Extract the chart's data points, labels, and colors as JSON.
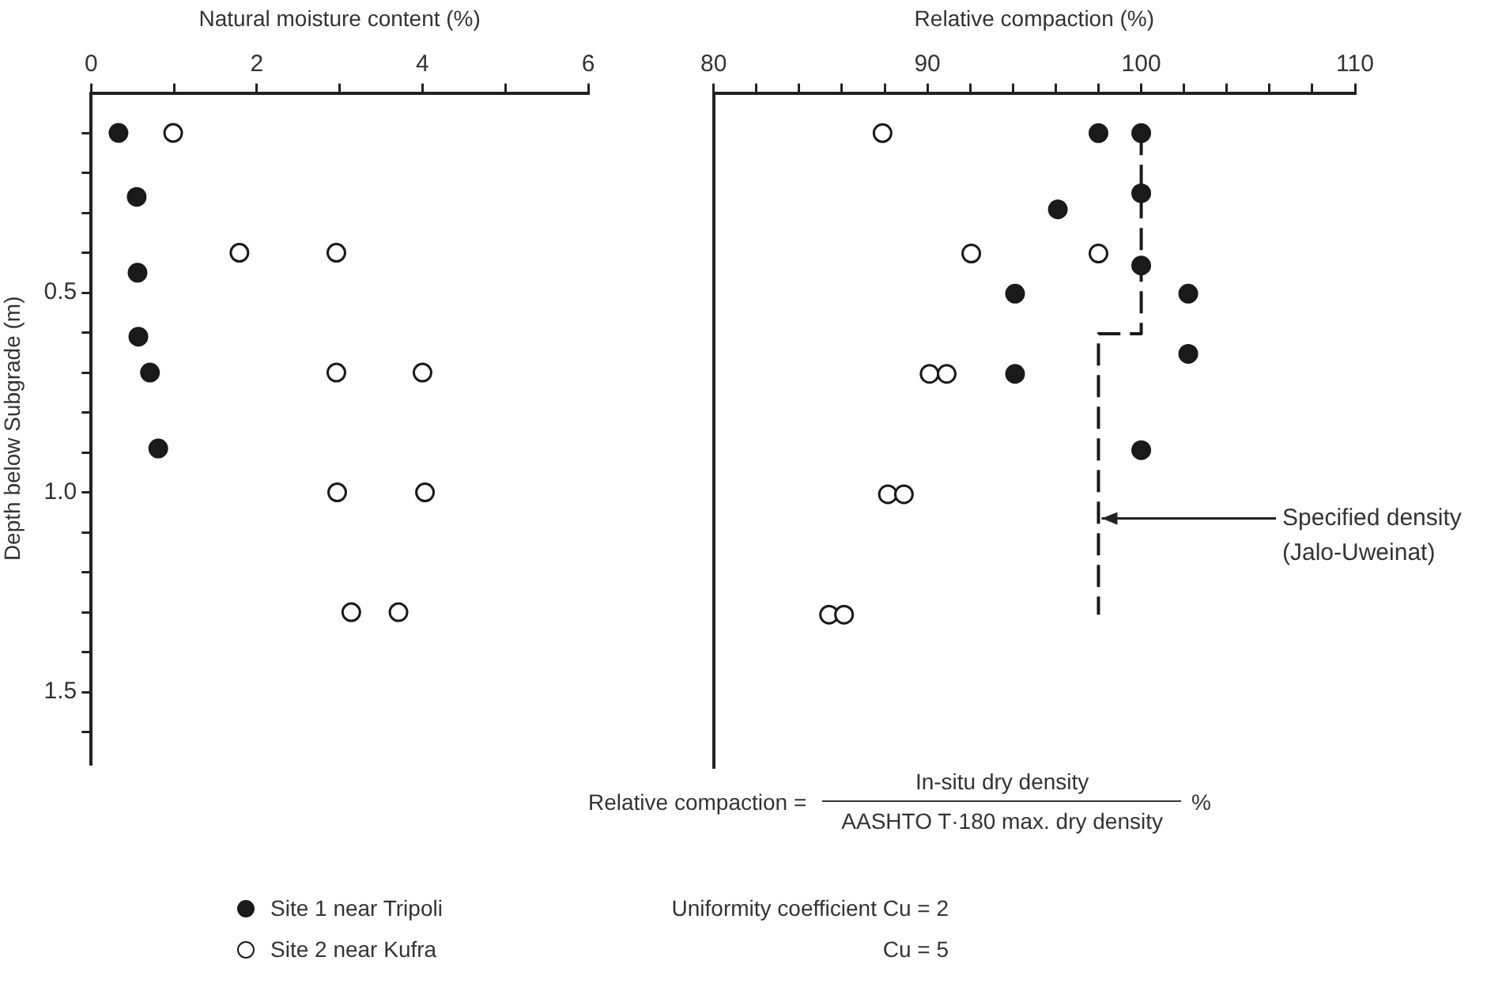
{
  "chart_data": [
    {
      "type": "scatter",
      "xlabel": "Natural moisture content (%)",
      "ylabel": "Depth below Subgrade (m)",
      "xlim": [
        0,
        6
      ],
      "xticks": [
        0,
        {
          "value": 1,
          "label": null
        },
        2,
        {
          "value": 3,
          "label": null
        },
        4,
        {
          "value": 5,
          "label": null
        },
        6
      ],
      "ylim": [
        1.68,
        0
      ],
      "yticks": [
        {
          "value": 0.1,
          "label": null
        },
        {
          "value": 0.2,
          "label": null
        },
        {
          "value": 0.3,
          "label": null
        },
        {
          "value": 0.4,
          "label": null
        },
        0.5,
        {
          "value": 0.6,
          "label": null
        },
        {
          "value": 0.7,
          "label": null
        },
        {
          "value": 0.8,
          "label": null
        },
        {
          "value": 0.9,
          "label": null
        },
        {
          "value": 1,
          "label": "1.0"
        },
        {
          "value": 1.1,
          "label": null
        },
        {
          "value": 1.2,
          "label": null
        },
        {
          "value": 1.3,
          "label": null
        },
        {
          "value": 1.4,
          "label": null
        },
        1.5,
        {
          "value": 1.6,
          "label": null
        }
      ],
      "marker": "circle",
      "legend": "bottom left",
      "series": [
        {
          "name": "Site 1 near Tripoli",
          "color": "#1a1a1a",
          "x": [
            0.33,
            0.55,
            0.56,
            0.57,
            0.71,
            0.81
          ],
          "values": [
            0.1,
            0.26,
            0.45,
            0.61,
            0.7,
            0.89
          ]
        },
        {
          "name": "Site 2 near Kufra",
          "color": "#ffffff",
          "x": [
            0.99,
            1.79,
            2.96,
            2.96,
            4.0,
            2.97,
            4.03,
            3.14,
            3.71
          ],
          "values": [
            0.1,
            0.4,
            0.4,
            0.7,
            0.7,
            1.0,
            1.0,
            1.3,
            1.3
          ]
        }
      ],
      "annotations": [
        "Uniformity coefficient Cu = 2",
        "Cu = 5"
      ]
    },
    {
      "type": "scatter",
      "xlabel": "Relative compaction (%)",
      "xlim": [
        80,
        110
      ],
      "xticks": [
        80,
        {
          "value": 82,
          "label": null
        },
        {
          "value": 84,
          "label": null
        },
        {
          "value": 86,
          "label": null
        },
        {
          "value": 88,
          "label": null
        },
        90,
        {
          "value": 92,
          "label": null
        },
        {
          "value": 94,
          "label": null
        },
        {
          "value": 96,
          "label": null
        },
        {
          "value": 98,
          "label": null
        },
        100,
        {
          "value": 102,
          "label": null
        },
        {
          "value": 104,
          "label": null
        },
        {
          "value": 106,
          "label": null
        },
        {
          "value": 108,
          "label": null
        },
        110
      ],
      "ylim": [
        1.68,
        0
      ],
      "tick_labels": "x",
      "series": [
        {
          "color": "#1a1a1a",
          "marker": "circle",
          "x": [
            98,
            100,
            100,
            96.1,
            100,
            94.1,
            102.2,
            102.2,
            94.1,
            100
          ],
          "values": [
            0.1,
            0.1,
            0.25,
            0.29,
            0.43,
            0.5,
            0.5,
            0.65,
            0.7,
            0.89
          ]
        },
        {
          "color": "#ffffff",
          "marker": "circle",
          "x": [
            87.9,
            92.05,
            98,
            90.1,
            90.9,
            88.15,
            88.9,
            85.4,
            86.1
          ],
          "values": [
            0.1,
            0.4,
            0.4,
            0.7,
            0.7,
            1.0,
            1.0,
            1.3,
            1.3
          ]
        },
        {
          "type": "line",
          "line_style": "dashed",
          "color": "#1a1a1a",
          "x": [
            100,
            100,
            98,
            98
          ],
          "values": [
            0.1,
            0.6,
            0.6,
            1.3
          ]
        }
      ],
      "annotations": [
        {
          "text": "Specified density\n(Jalo-Uweinat)",
          "x": 98,
          "y": 1.06
        },
        "Relative compaction =",
        "In-situ dry density",
        "AASHTO T·180 max. dry density",
        "%"
      ]
    }
  ]
}
